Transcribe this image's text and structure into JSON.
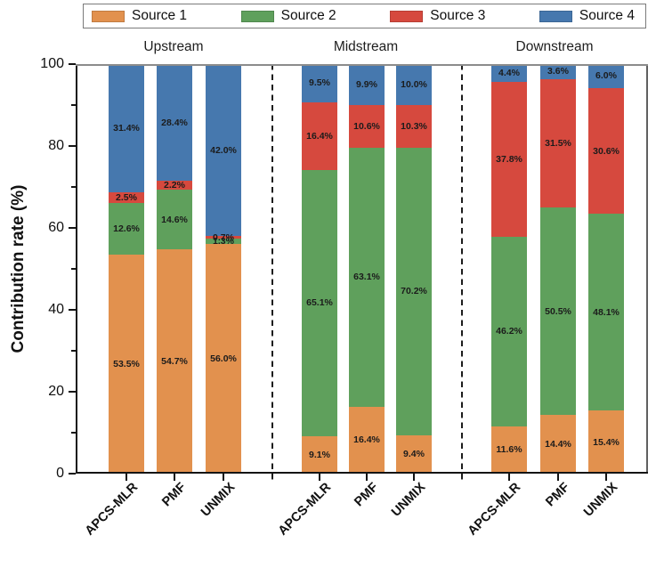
{
  "chart_data": {
    "type": "bar",
    "stacked": true,
    "title": "",
    "ylabel": "Contribution rate (%)",
    "xlabel": "",
    "ylim": [
      0,
      100
    ],
    "yticks": [
      0,
      20,
      40,
      60,
      80,
      100
    ],
    "legend_position": "top",
    "grid": false,
    "series": [
      {
        "name": "Source 1",
        "color": "#E2914E"
      },
      {
        "name": "Source 2",
        "color": "#5FA05C"
      },
      {
        "name": "Source 3",
        "color": "#D6493E"
      },
      {
        "name": "Source 4",
        "color": "#4678AE"
      }
    ],
    "groups": [
      {
        "name": "Upstream",
        "bars": [
          {
            "method": "APCS-MLR",
            "values": [
              53.5,
              12.6,
              2.5,
              31.4
            ],
            "labels": [
              "53.5%",
              "12.6%",
              "2.5%",
              "31.4%"
            ]
          },
          {
            "method": "PMF",
            "values": [
              54.7,
              14.6,
              2.2,
              28.4
            ],
            "labels": [
              "54.7%",
              "14.6%",
              "2.2%",
              "28.4%"
            ]
          },
          {
            "method": "UNMIX",
            "values": [
              56.0,
              1.3,
              0.7,
              42.0
            ],
            "labels": [
              "56.0%",
              "1.3%",
              "0.7%",
              "42.0%"
            ]
          }
        ]
      },
      {
        "name": "Midstream",
        "bars": [
          {
            "method": "APCS-MLR",
            "values": [
              9.1,
              65.1,
              16.4,
              9.5
            ],
            "labels": [
              "9.1%",
              "65.1%",
              "16.4%",
              "9.5%"
            ]
          },
          {
            "method": "PMF",
            "values": [
              16.4,
              63.1,
              10.6,
              9.9
            ],
            "labels": [
              "16.4%",
              "63.1%",
              "10.6%",
              "9.9%"
            ]
          },
          {
            "method": "UNMIX",
            "values": [
              9.4,
              70.2,
              10.3,
              10.0
            ],
            "labels": [
              "9.4%",
              "70.2%",
              "10.3%",
              "10.0%"
            ]
          }
        ]
      },
      {
        "name": "Downstream",
        "bars": [
          {
            "method": "APCS-MLR",
            "values": [
              11.6,
              46.2,
              37.8,
              4.4
            ],
            "labels": [
              "11.6%",
              "46.2%",
              "37.8%",
              "4.4%"
            ]
          },
          {
            "method": "PMF",
            "values": [
              14.4,
              50.5,
              31.5,
              3.6
            ],
            "labels": [
              "14.4%",
              "50.5%",
              "31.5%",
              "3.6%"
            ]
          },
          {
            "method": "UNMIX",
            "values": [
              15.4,
              48.1,
              30.6,
              6.0
            ],
            "labels": [
              "15.4%",
              "48.1%",
              "30.6%",
              "6.0%"
            ]
          }
        ]
      }
    ]
  }
}
